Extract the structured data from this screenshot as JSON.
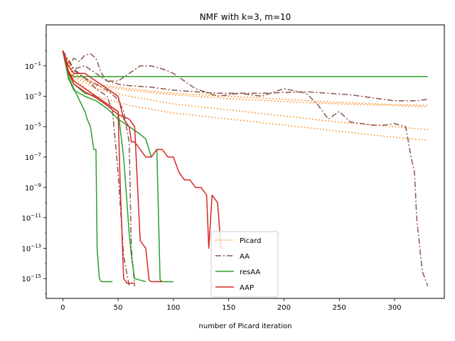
{
  "chart_data": {
    "type": "line",
    "title": "NMF with k=3, m=10",
    "xlabel": "number of Picard iteration",
    "ylabel": "",
    "xlim": [
      -15,
      345
    ],
    "ylim_log10": [
      -16.3,
      1.7
    ],
    "yscale": "log",
    "grid": false,
    "legend_position": "lower-center",
    "x_ticks": [
      0,
      50,
      100,
      150,
      200,
      250,
      300
    ],
    "y_ticks": [
      {
        "exp": -1,
        "label": "10",
        "sup": "−1"
      },
      {
        "exp": -3,
        "label": "10",
        "sup": "−3"
      },
      {
        "exp": -5,
        "label": "10",
        "sup": "−5"
      },
      {
        "exp": -7,
        "label": "10",
        "sup": "−7"
      },
      {
        "exp": -9,
        "label": "10",
        "sup": "−9"
      },
      {
        "exp": -11,
        "label": "10",
        "sup": "−11"
      },
      {
        "exp": -13,
        "label": "10",
        "sup": "−13"
      },
      {
        "exp": -15,
        "label": "10",
        "sup": "−15"
      }
    ],
    "legend": [
      {
        "name": "Picard",
        "color": "#ff7f0e",
        "dash": "1.5,3"
      },
      {
        "name": "AA",
        "color": "#8c564b",
        "dash": "8,3,2,3"
      },
      {
        "name": "resAA",
        "color": "#2ca02c",
        "dash": ""
      },
      {
        "name": "AAP",
        "color": "#d62728",
        "dash": ""
      }
    ],
    "series": [
      {
        "name": "Picard",
        "color": "#ff7f0e",
        "dash": "1.5,3",
        "x": [
          0,
          10,
          30,
          60,
          100,
          150,
          200,
          250,
          300,
          330
        ],
        "y_log10": [
          0,
          -1.5,
          -2.2,
          -2.5,
          -2.8,
          -3.0,
          -3.2,
          -3.4,
          -3.55,
          -3.6
        ]
      },
      {
        "name": "Picard",
        "color": "#ff7f0e",
        "dash": "1.5,3",
        "x": [
          0,
          10,
          30,
          60,
          100,
          150,
          200,
          250,
          300,
          330
        ],
        "y_log10": [
          0,
          -1.6,
          -2.3,
          -2.6,
          -2.9,
          -3.15,
          -3.35,
          -3.5,
          -3.6,
          -3.7
        ]
      },
      {
        "name": "Picard",
        "color": "#ff7f0e",
        "dash": "1.5,3",
        "x": [
          0,
          10,
          30,
          60,
          100,
          150,
          200,
          250,
          300,
          330
        ],
        "y_log10": [
          0,
          -1.7,
          -2.5,
          -3.0,
          -3.5,
          -3.9,
          -4.3,
          -4.7,
          -5.0,
          -5.2
        ]
      },
      {
        "name": "Picard",
        "color": "#ff7f0e",
        "dash": "1.5,3",
        "x": [
          0,
          10,
          30,
          60,
          100,
          150,
          200,
          250,
          300,
          330
        ],
        "y_log10": [
          0,
          -1.8,
          -3.0,
          -3.6,
          -4.1,
          -4.5,
          -4.9,
          -5.3,
          -5.7,
          -5.9
        ]
      },
      {
        "name": "AA",
        "color": "#8c564b",
        "dash": "8,3,2,3",
        "x": [
          0,
          5,
          10,
          15,
          20,
          25,
          30,
          35,
          40,
          50,
          60,
          70,
          80,
          90,
          100,
          120,
          140,
          160,
          180,
          200,
          220,
          230,
          240,
          250,
          260,
          270,
          280,
          290,
          300,
          310,
          315,
          318,
          320,
          325,
          330
        ],
        "y_log10": [
          0,
          -1.0,
          -0.5,
          -0.7,
          -0.3,
          -0.2,
          -0.5,
          -1.5,
          -2.0,
          -2.0,
          -1.5,
          -1.0,
          -1.0,
          -1.2,
          -1.5,
          -2.5,
          -3.0,
          -2.8,
          -3.0,
          -2.5,
          -2.8,
          -3.5,
          -4.5,
          -4.0,
          -4.7,
          -4.8,
          -4.9,
          -4.9,
          -4.8,
          -5.0,
          -7.0,
          -8.0,
          -11.0,
          -14.5,
          -15.5
        ]
      },
      {
        "name": "AA",
        "color": "#8c564b",
        "dash": "8,3,2,3",
        "x": [
          0,
          10,
          20,
          30,
          40,
          50,
          60,
          80,
          100,
          140,
          180,
          220,
          260,
          300,
          320,
          330
        ],
        "y_log10": [
          0,
          -1.2,
          -1.0,
          -1.5,
          -2.0,
          -2.2,
          -2.3,
          -2.4,
          -2.6,
          -2.8,
          -2.8,
          -2.7,
          -2.9,
          -3.3,
          -3.3,
          -3.2
        ]
      },
      {
        "name": "AA",
        "color": "#8c564b",
        "dash": "8,3,2,3",
        "x": [
          0,
          10,
          20,
          30,
          40,
          45,
          50,
          55,
          60
        ],
        "y_log10": [
          0,
          -1.3,
          -1.8,
          -2.5,
          -3.0,
          -4.0,
          -8.0,
          -13.5,
          -15.5
        ]
      },
      {
        "name": "AA",
        "color": "#8c564b",
        "dash": "8,3,2,3",
        "x": [
          0,
          10,
          20,
          30,
          40,
          50,
          55,
          60,
          62,
          65
        ],
        "y_log10": [
          0,
          -1.2,
          -1.8,
          -2.2,
          -2.6,
          -3.2,
          -4.0,
          -6.0,
          -13.0,
          -15.5
        ]
      },
      {
        "name": "resAA",
        "color": "#2ca02c",
        "dash": "",
        "x": [
          0,
          5,
          10,
          20,
          50,
          100,
          150,
          200,
          250,
          300,
          330
        ],
        "y_log10": [
          0,
          -1.5,
          -1.7,
          -1.7,
          -1.7,
          -1.7,
          -1.7,
          -1.7,
          -1.7,
          -1.7,
          -1.7
        ]
      },
      {
        "name": "resAA",
        "color": "#2ca02c",
        "dash": "",
        "x": [
          0,
          5,
          10,
          20,
          22,
          25,
          28,
          30,
          31,
          33,
          35,
          40,
          45
        ],
        "y_log10": [
          0,
          -1.7,
          -2.5,
          -4.0,
          -4.5,
          -5.0,
          -6.5,
          -6.5,
          -13.0,
          -15.0,
          -15.2,
          -15.2,
          -15.2
        ]
      },
      {
        "name": "resAA",
        "color": "#2ca02c",
        "dash": "",
        "x": [
          0,
          5,
          10,
          20,
          30,
          40,
          50,
          55,
          60,
          62,
          65,
          70,
          75
        ],
        "y_log10": [
          0,
          -1.5,
          -2.2,
          -2.8,
          -3.0,
          -3.5,
          -4.0,
          -7.0,
          -12.0,
          -13.5,
          -15.0,
          -15.1,
          -15.2
        ]
      },
      {
        "name": "resAA",
        "color": "#2ca02c",
        "dash": "",
        "x": [
          0,
          5,
          10,
          20,
          30,
          40,
          50,
          60,
          70,
          75,
          80,
          85,
          88,
          90,
          95,
          100
        ],
        "y_log10": [
          0,
          -1.8,
          -2.6,
          -3.0,
          -3.3,
          -3.8,
          -4.5,
          -5.0,
          -5.5,
          -5.8,
          -7.0,
          -6.5,
          -15.1,
          -15.2,
          -15.2,
          -15.2
        ]
      },
      {
        "name": "AAP",
        "color": "#d62728",
        "dash": "",
        "x": [
          0,
          5,
          10,
          20,
          30,
          40,
          50,
          55,
          60,
          62,
          65,
          70,
          75,
          80,
          85,
          90,
          95,
          100,
          105,
          110,
          115,
          120,
          125,
          130,
          132,
          135,
          140,
          143,
          145
        ],
        "y_log10": [
          0,
          -1.0,
          -1.5,
          -1.5,
          -2.0,
          -2.5,
          -3.0,
          -4.5,
          -5.0,
          -6.0,
          -6.0,
          -6.5,
          -7.0,
          -7.0,
          -6.5,
          -6.5,
          -7.0,
          -7.0,
          -8.0,
          -8.5,
          -8.5,
          -9.0,
          -9.0,
          -9.5,
          -13.0,
          -9.5,
          -10.0,
          -13.0,
          -13.0
        ]
      },
      {
        "name": "AAP",
        "color": "#d62728",
        "dash": "",
        "x": [
          0,
          5,
          10,
          20,
          30,
          40,
          50,
          52,
          55,
          58,
          60,
          65
        ],
        "y_log10": [
          0,
          -1.3,
          -2.0,
          -2.5,
          -3.0,
          -3.5,
          -4.0,
          -9.0,
          -15.0,
          -15.3,
          -15.3,
          -15.3
        ]
      },
      {
        "name": "AAP",
        "color": "#d62728",
        "dash": "",
        "x": [
          0,
          5,
          10,
          20,
          30,
          40,
          50,
          60,
          65,
          70,
          75,
          78,
          80,
          85,
          90
        ],
        "y_log10": [
          0,
          -1.4,
          -2.2,
          -2.7,
          -3.1,
          -3.6,
          -4.2,
          -4.5,
          -5.0,
          -12.5,
          -13.0,
          -15.1,
          -15.2,
          -15.2,
          -15.2
        ]
      }
    ]
  }
}
